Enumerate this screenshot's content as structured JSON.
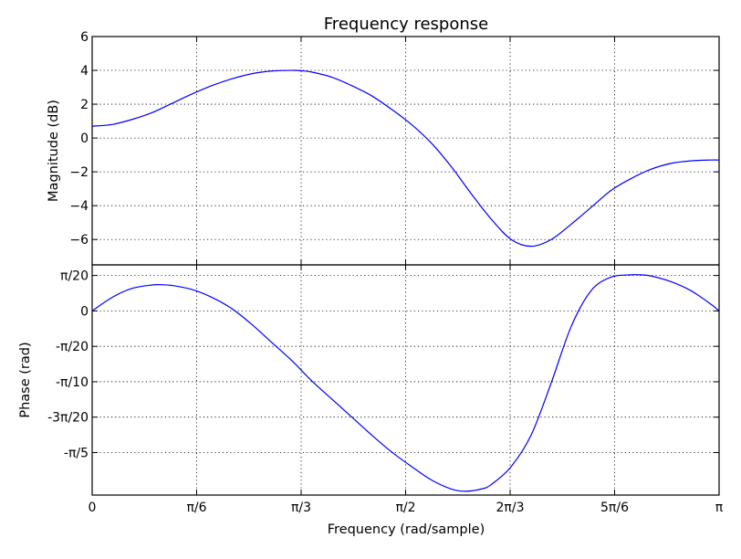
{
  "chart_data": {
    "type": "line",
    "title": "Frequency response",
    "xlabel": "Frequency (rad/sample)",
    "x_ticks": [
      {
        "value": 0,
        "label": "0"
      },
      {
        "value": 0.5236,
        "label": "π/6"
      },
      {
        "value": 1.0472,
        "label": "π/3"
      },
      {
        "value": 1.5708,
        "label": "π/2"
      },
      {
        "value": 2.0944,
        "label": "2π/3"
      },
      {
        "value": 2.618,
        "label": "5π/6"
      },
      {
        "value": 3.1416,
        "label": "π"
      }
    ],
    "xlim": [
      0,
      3.1416
    ],
    "grid": true,
    "panels": [
      {
        "ylabel": "Magnitude (dB)",
        "ylim": [
          -7.5,
          6
        ],
        "y_ticks": [
          {
            "value": 6,
            "label": "6"
          },
          {
            "value": 4,
            "label": "4"
          },
          {
            "value": 2,
            "label": "2"
          },
          {
            "value": 0,
            "label": "0"
          },
          {
            "value": -2,
            "label": "−2"
          },
          {
            "value": -4,
            "label": "−4"
          },
          {
            "value": -6,
            "label": "−6"
          }
        ],
        "series": [
          {
            "color": "#0000ff",
            "x": [
              0,
              0.1,
              0.2,
              0.3,
              0.4,
              0.5,
              0.6,
              0.7,
              0.8,
              0.9,
              1.0,
              1.0472,
              1.1,
              1.2,
              1.3,
              1.4,
              1.5,
              1.6,
              1.7,
              1.8,
              1.9,
              2.0,
              2.1,
              2.2,
              2.3,
              2.4,
              2.5,
              2.6,
              2.7,
              2.8,
              2.9,
              3.0,
              3.1,
              3.1416
            ],
            "y": [
              0.7,
              0.8,
              1.1,
              1.5,
              2.05,
              2.6,
              3.1,
              3.5,
              3.8,
              3.96,
              4.0,
              3.98,
              3.9,
              3.6,
              3.1,
              2.5,
              1.7,
              0.8,
              -0.3,
              -1.7,
              -3.3,
              -4.8,
              -6.0,
              -6.4,
              -6.0,
              -5.1,
              -4.1,
              -3.1,
              -2.4,
              -1.85,
              -1.5,
              -1.35,
              -1.3,
              -1.3
            ]
          }
        ]
      },
      {
        "ylabel": "Phase (rad)",
        "ylim": [
          -0.8168,
          0.2042
        ],
        "y_ticks": [
          {
            "value": 0.1571,
            "label": "π/20"
          },
          {
            "value": 0,
            "label": "0"
          },
          {
            "value": -0.1571,
            "label": "-π/20"
          },
          {
            "value": -0.3142,
            "label": "-π/10"
          },
          {
            "value": -0.4712,
            "label": "-3π/20"
          },
          {
            "value": -0.6283,
            "label": "-π/5"
          }
        ],
        "series": [
          {
            "color": "#0000ff",
            "x": [
              0,
              0.1,
              0.2,
              0.3,
              0.35,
              0.4,
              0.5,
              0.6,
              0.7,
              0.8,
              0.9,
              1.0,
              1.1,
              1.2,
              1.3,
              1.4,
              1.5,
              1.6,
              1.7,
              1.8,
              1.87,
              1.95,
              2.0,
              2.1,
              2.2,
              2.3,
              2.4,
              2.5,
              2.6,
              2.7,
              2.75,
              2.8,
              2.9,
              3.0,
              3.1,
              3.1416
            ],
            "y": [
              0.0,
              0.06,
              0.1,
              0.115,
              0.116,
              0.113,
              0.095,
              0.06,
              0.01,
              -0.06,
              -0.14,
              -0.22,
              -0.31,
              -0.39,
              -0.47,
              -0.55,
              -0.625,
              -0.69,
              -0.75,
              -0.79,
              -0.8,
              -0.79,
              -0.77,
              -0.69,
              -0.55,
              -0.32,
              -0.07,
              0.09,
              0.15,
              0.16,
              0.16,
              0.155,
              0.13,
              0.09,
              0.03,
              0.0
            ]
          }
        ]
      }
    ]
  }
}
